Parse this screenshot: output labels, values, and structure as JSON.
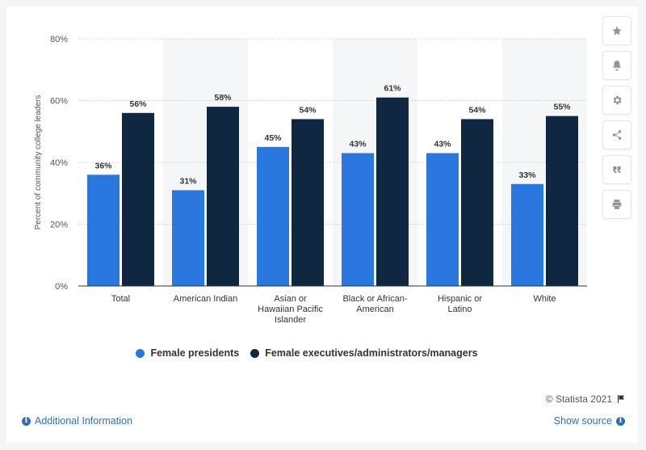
{
  "chart_data": {
    "type": "bar",
    "categories": [
      "Total",
      "American Indian",
      "Asian or Hawaiian Pacific Islander",
      "Black or African-American",
      "Hispanic or Latino",
      "White"
    ],
    "category_lines": [
      [
        "Total"
      ],
      [
        "American Indian"
      ],
      [
        "Asian or",
        "Hawaiian Pacific",
        "Islander"
      ],
      [
        "Black or African-",
        "American"
      ],
      [
        "Hispanic or",
        "Latino"
      ],
      [
        "White"
      ]
    ],
    "series": [
      {
        "name": "Female presidents",
        "values": [
          36,
          31,
          45,
          43,
          43,
          33
        ],
        "labels": [
          "36%",
          "31%",
          "45%",
          "43%",
          "43%",
          "33%"
        ],
        "color": "#2a77e0"
      },
      {
        "name": "Female executives/administrators/managers",
        "values": [
          56,
          58,
          54,
          61,
          54,
          55
        ],
        "labels": [
          "56%",
          "58%",
          "54%",
          "61%",
          "54%",
          "55%"
        ],
        "color": "#0f2741"
      }
    ],
    "ylabel": "Percent of community college leaders",
    "ylim": [
      0,
      80
    ],
    "yticks": [
      0,
      20,
      40,
      60,
      80
    ],
    "ytick_labels": [
      "0%",
      "20%",
      "40%",
      "60%",
      "80%"
    ],
    "grid": true,
    "legend_position": "bottom"
  },
  "legend": {
    "items": [
      {
        "label": "Female presidents",
        "color": "#2a77e0"
      },
      {
        "label": "Female executives/administrators/managers",
        "color": "#0f2741"
      }
    ]
  },
  "toolbar": {
    "icons": [
      "star-icon",
      "bell-icon",
      "gear-icon",
      "share-icon",
      "quote-icon",
      "print-icon"
    ]
  },
  "footer": {
    "credit": "© Statista 2021",
    "additional_info": "Additional Information",
    "show_source": "Show source"
  },
  "colors": {
    "band": "#f5f6f8",
    "grid": "#c8ccd1",
    "axis": "#333333",
    "link": "#2f6fba"
  }
}
